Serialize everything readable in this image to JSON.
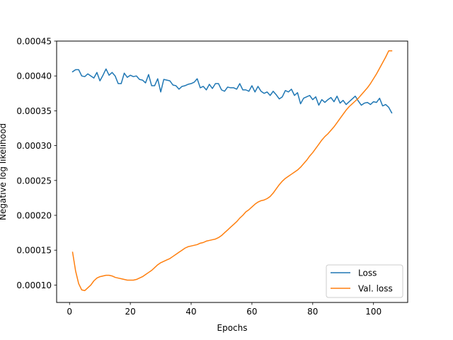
{
  "chart_data": {
    "type": "line",
    "title": "",
    "xlabel": "Epochs",
    "ylabel": "Negative log likelihood",
    "xlim": [
      -4.25,
      111.25
    ],
    "ylim": [
      7.5e-05,
      0.00045
    ],
    "xticks": [
      0,
      20,
      40,
      60,
      80,
      100
    ],
    "xtick_labels": [
      "0",
      "20",
      "40",
      "60",
      "80",
      "100"
    ],
    "yticks": [
      0.0001,
      0.00015,
      0.0002,
      0.00025,
      0.0003,
      0.00035,
      0.0004,
      0.00045
    ],
    "ytick_labels": [
      "0.00010",
      "0.00015",
      "0.00020",
      "0.00025",
      "0.00030",
      "0.00035",
      "0.00040",
      "0.00045"
    ],
    "grid": false,
    "legend": {
      "position": "bottom-right"
    },
    "series": [
      {
        "name": "Loss",
        "color": "#1f77b4",
        "x": [
          1,
          2,
          3,
          4,
          5,
          6,
          7,
          8,
          9,
          10,
          11,
          12,
          13,
          14,
          15,
          16,
          17,
          18,
          19,
          20,
          21,
          22,
          23,
          24,
          25,
          26,
          27,
          28,
          29,
          30,
          31,
          32,
          33,
          34,
          35,
          36,
          37,
          38,
          39,
          40,
          41,
          42,
          43,
          44,
          45,
          46,
          47,
          48,
          49,
          50,
          51,
          52,
          53,
          54,
          55,
          56,
          57,
          58,
          59,
          60,
          61,
          62,
          63,
          64,
          65,
          66,
          67,
          68,
          69,
          70,
          71,
          72,
          73,
          74,
          75,
          76,
          77,
          78,
          79,
          80,
          81,
          82,
          83,
          84,
          85,
          86,
          87,
          88,
          89,
          90,
          91,
          92,
          93,
          94,
          95,
          96,
          97,
          98,
          99,
          100,
          101,
          102,
          103,
          104,
          105,
          106
        ],
        "y": [
          0.000406,
          0.000409,
          0.000409,
          0.0004,
          0.000399,
          0.000403,
          0.0004,
          0.000397,
          0.000405,
          0.000393,
          0.000401,
          0.00041,
          0.000401,
          0.000405,
          0.0004,
          0.000389,
          0.000389,
          0.000404,
          0.000398,
          0.000401,
          0.000399,
          0.0004,
          0.000395,
          0.000394,
          0.00039,
          0.000402,
          0.000386,
          0.000386,
          0.000396,
          0.000377,
          0.000395,
          0.000394,
          0.000393,
          0.000387,
          0.000386,
          0.000381,
          0.000385,
          0.000386,
          0.000388,
          0.000389,
          0.000391,
          0.000396,
          0.000383,
          0.000385,
          0.00038,
          0.000388,
          0.000382,
          0.000389,
          0.000389,
          0.00038,
          0.000378,
          0.000384,
          0.000383,
          0.000383,
          0.000381,
          0.000389,
          0.00038,
          0.00038,
          0.000378,
          0.000386,
          0.000377,
          0.000385,
          0.000378,
          0.000375,
          0.000377,
          0.000372,
          0.000378,
          0.000373,
          0.000367,
          0.00037,
          0.000379,
          0.000377,
          0.000381,
          0.000372,
          0.000376,
          0.00036,
          0.000368,
          0.00037,
          0.000372,
          0.000366,
          0.00037,
          0.000358,
          0.000366,
          0.000362,
          0.000366,
          0.000369,
          0.000363,
          0.000371,
          0.000361,
          0.000365,
          0.000359,
          0.000363,
          0.000367,
          0.000371,
          0.000364,
          0.000358,
          0.000361,
          0.000362,
          0.000359,
          0.000363,
          0.000362,
          0.000368,
          0.000357,
          0.000359,
          0.000355,
          0.000347
        ]
      },
      {
        "name": "Val. loss",
        "color": "#ff7f0e",
        "x": [
          1,
          2,
          3,
          4,
          5,
          6,
          7,
          8,
          9,
          10,
          11,
          12,
          13,
          14,
          15,
          16,
          17,
          18,
          19,
          20,
          21,
          22,
          23,
          24,
          25,
          26,
          27,
          28,
          29,
          30,
          31,
          32,
          33,
          34,
          35,
          36,
          37,
          38,
          39,
          40,
          41,
          42,
          43,
          44,
          45,
          46,
          47,
          48,
          49,
          50,
          51,
          52,
          53,
          54,
          55,
          56,
          57,
          58,
          59,
          60,
          61,
          62,
          63,
          64,
          65,
          66,
          67,
          68,
          69,
          70,
          71,
          72,
          73,
          74,
          75,
          76,
          77,
          78,
          79,
          80,
          81,
          82,
          83,
          84,
          85,
          86,
          87,
          88,
          89,
          90,
          91,
          92,
          93,
          94,
          95,
          96,
          97,
          98,
          99,
          100,
          101,
          102,
          103,
          104,
          105,
          106
        ],
        "y": [
          0.000147,
          0.00012,
          0.000102,
          9.3e-05,
          9.2e-05,
          9.6e-05,
          0.0001,
          0.000106,
          0.00011,
          0.000112,
          0.000113,
          0.000114,
          0.000114,
          0.000113,
          0.000111,
          0.00011,
          0.000109,
          0.000108,
          0.000107,
          0.000107,
          0.000107,
          0.000108,
          0.00011,
          0.000112,
          0.000115,
          0.000118,
          0.000121,
          0.000125,
          0.000129,
          0.000132,
          0.000134,
          0.000136,
          0.000138,
          0.000141,
          0.000144,
          0.000147,
          0.00015,
          0.000153,
          0.000155,
          0.000156,
          0.000157,
          0.000158,
          0.00016,
          0.000161,
          0.000163,
          0.000164,
          0.000165,
          0.000166,
          0.000168,
          0.000171,
          0.000175,
          0.000179,
          0.000183,
          0.000187,
          0.000191,
          0.000196,
          0.0002,
          0.000205,
          0.000208,
          0.000212,
          0.000216,
          0.000219,
          0.000221,
          0.000222,
          0.000224,
          0.000227,
          0.000232,
          0.000238,
          0.000244,
          0.000249,
          0.000253,
          0.000256,
          0.000259,
          0.000262,
          0.000265,
          0.000269,
          0.000274,
          0.000279,
          0.000285,
          0.00029,
          0.000296,
          0.000302,
          0.000308,
          0.000313,
          0.000317,
          0.000322,
          0.000327,
          0.000333,
          0.000339,
          0.000345,
          0.000351,
          0.000356,
          0.00036,
          0.000364,
          0.000368,
          0.000373,
          0.000378,
          0.000383,
          0.000389,
          0.000396,
          0.000403,
          0.000411,
          0.000419,
          0.000427,
          0.000436,
          0.000436
        ]
      }
    ]
  }
}
